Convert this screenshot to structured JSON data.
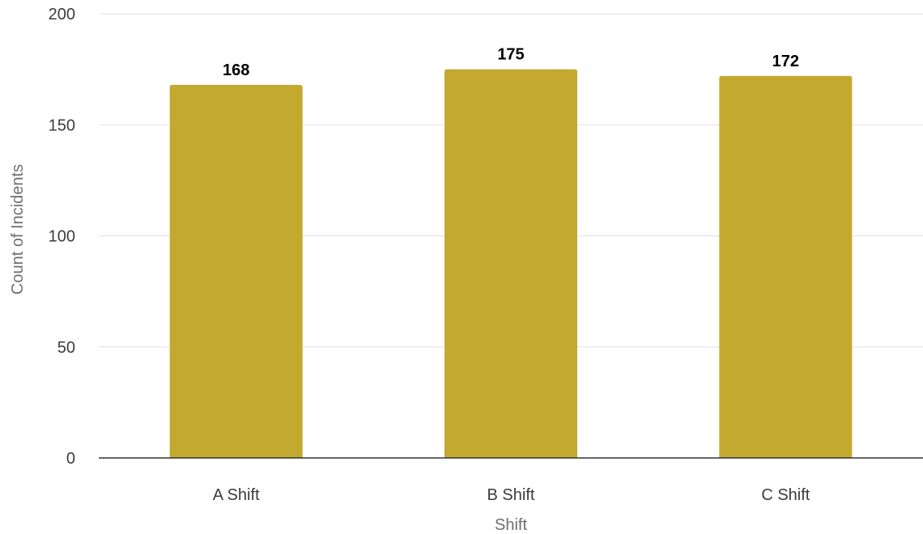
{
  "chart_data": {
    "type": "bar",
    "categories": [
      "A Shift",
      "B Shift",
      "C Shift"
    ],
    "values": [
      168,
      175,
      172
    ],
    "data_labels": [
      "168",
      "175",
      "172"
    ],
    "xlabel": "Shift",
    "ylabel": "Count of Incidents",
    "ylim": [
      0,
      200
    ],
    "yticks": [
      0,
      50,
      100,
      150,
      200
    ],
    "ytick_labels": [
      "0",
      "50",
      "100",
      "150",
      "200"
    ],
    "grid": true,
    "legend": "none",
    "colors": {
      "bar": "#c4a930",
      "grid": "#e0e0e0",
      "baseline": "#333333"
    }
  }
}
